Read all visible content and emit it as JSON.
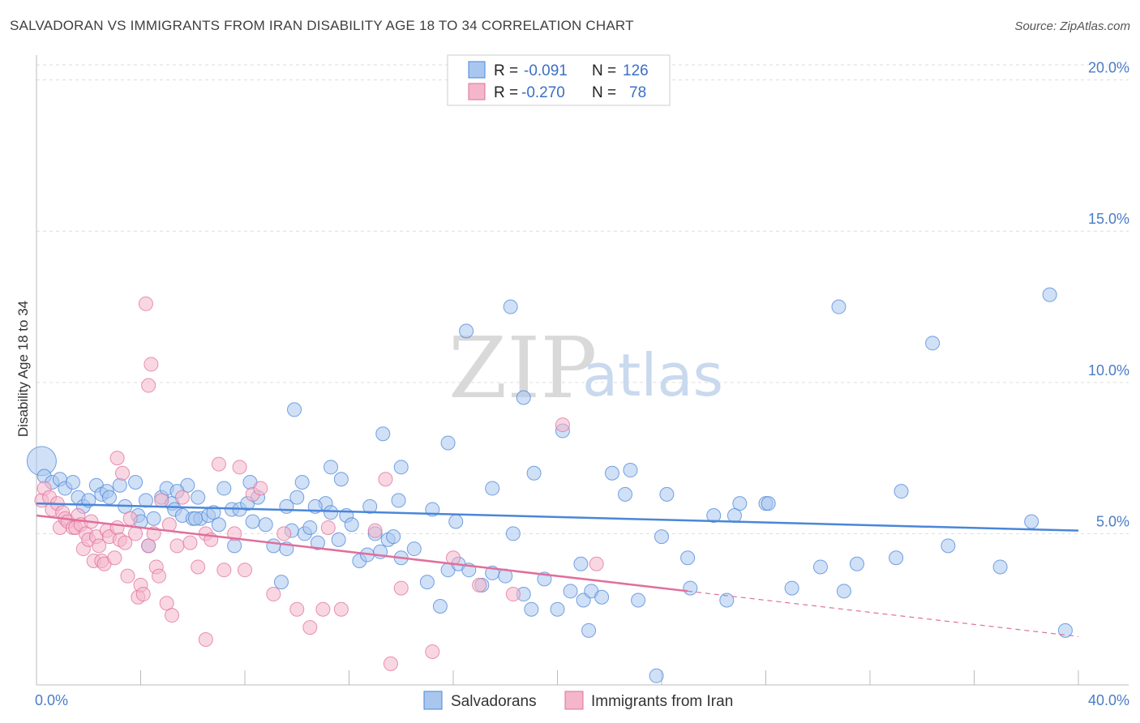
{
  "title": "SALVADORAN VS IMMIGRANTS FROM IRAN DISABILITY AGE 18 TO 34 CORRELATION CHART",
  "source": "Source: ZipAtlas.com",
  "watermark": {
    "zip": "ZIP",
    "atlas": "atlas"
  },
  "colors": {
    "blue": "#4a86d9",
    "blue_fill": "#a9c7ee",
    "pink": "#e06f9b",
    "pink_fill": "#f4b6cb",
    "axis_text": "#4a7cc9"
  },
  "chart_data": {
    "type": "scatter",
    "xlabel": "",
    "ylabel": "Disability Age 18 to 34",
    "xlim": [
      0,
      40
    ],
    "ylim": [
      0,
      20.5
    ],
    "x_tick_labels": [
      {
        "value": 0,
        "label": "0.0%"
      },
      {
        "value": 40,
        "label": "40.0%"
      }
    ],
    "y_tick_labels": [
      {
        "value": 5,
        "label": "5.0%"
      },
      {
        "value": 10,
        "label": "10.0%"
      },
      {
        "value": 15,
        "label": "15.0%"
      },
      {
        "value": 20,
        "label": "20.0%"
      }
    ],
    "legend": [
      {
        "label": "R =",
        "r": "-0.091",
        "n_label": "N =",
        "n": "126",
        "color": "blue"
      },
      {
        "label": "R =",
        "r": "-0.270",
        "n_label": "N =",
        "n": "78",
        "color": "pink"
      }
    ],
    "series": [
      {
        "name": "Salvadorans",
        "color": "blue",
        "trend": {
          "x0": 0,
          "y0": 6.0,
          "x1": 40,
          "y1": 5.1
        },
        "points": [
          [
            0.2,
            7.4
          ],
          [
            0.3,
            6.9
          ],
          [
            0.6,
            6.7
          ],
          [
            0.9,
            6.8
          ],
          [
            1.1,
            6.5
          ],
          [
            1.4,
            6.7
          ],
          [
            1.6,
            6.2
          ],
          [
            1.8,
            5.9
          ],
          [
            2.0,
            6.1
          ],
          [
            2.3,
            6.6
          ],
          [
            2.5,
            6.3
          ],
          [
            2.7,
            6.4
          ],
          [
            2.8,
            6.2
          ],
          [
            3.2,
            6.6
          ],
          [
            3.4,
            5.9
          ],
          [
            3.8,
            6.7
          ],
          [
            3.9,
            5.6
          ],
          [
            4.0,
            5.4
          ],
          [
            4.2,
            6.1
          ],
          [
            4.3,
            4.6
          ],
          [
            4.5,
            5.5
          ],
          [
            4.8,
            6.2
          ],
          [
            5.0,
            6.5
          ],
          [
            5.2,
            6.0
          ],
          [
            5.3,
            5.8
          ],
          [
            5.6,
            5.6
          ],
          [
            5.8,
            6.6
          ],
          [
            6.0,
            5.5
          ],
          [
            6.2,
            6.2
          ],
          [
            6.3,
            5.5
          ],
          [
            6.6,
            5.6
          ],
          [
            6.8,
            5.7
          ],
          [
            7.0,
            5.3
          ],
          [
            7.2,
            6.5
          ],
          [
            7.5,
            5.8
          ],
          [
            7.6,
            4.6
          ],
          [
            7.8,
            5.8
          ],
          [
            8.1,
            6.0
          ],
          [
            8.3,
            5.4
          ],
          [
            8.5,
            6.2
          ],
          [
            8.8,
            5.3
          ],
          [
            9.1,
            4.6
          ],
          [
            9.4,
            3.4
          ],
          [
            9.6,
            4.5
          ],
          [
            9.8,
            5.1
          ],
          [
            10.0,
            6.2
          ],
          [
            10.3,
            5.0
          ],
          [
            10.5,
            5.2
          ],
          [
            10.8,
            4.7
          ],
          [
            11.1,
            6.0
          ],
          [
            11.3,
            5.7
          ],
          [
            11.6,
            4.8
          ],
          [
            11.9,
            5.6
          ],
          [
            12.4,
            4.1
          ],
          [
            12.7,
            4.3
          ],
          [
            13.0,
            5.0
          ],
          [
            13.2,
            4.4
          ],
          [
            13.5,
            4.8
          ],
          [
            13.7,
            4.9
          ],
          [
            14.0,
            4.2
          ],
          [
            14.5,
            4.5
          ],
          [
            15.0,
            3.4
          ],
          [
            15.5,
            2.6
          ],
          [
            15.8,
            3.8
          ],
          [
            16.2,
            4.0
          ],
          [
            16.6,
            3.8
          ],
          [
            17.1,
            3.3
          ],
          [
            17.5,
            3.7
          ],
          [
            18.0,
            3.6
          ],
          [
            18.3,
            5.0
          ],
          [
            18.7,
            3.0
          ],
          [
            19.0,
            2.5
          ],
          [
            19.5,
            3.5
          ],
          [
            20.0,
            2.5
          ],
          [
            20.5,
            3.1
          ],
          [
            21.0,
            2.8
          ],
          [
            21.3,
            3.1
          ],
          [
            21.7,
            2.9
          ],
          [
            22.1,
            7.0
          ],
          [
            22.8,
            7.1
          ],
          [
            24.0,
            4.9
          ],
          [
            25.0,
            4.2
          ],
          [
            26.0,
            5.6
          ],
          [
            26.5,
            2.8
          ],
          [
            27.0,
            6.0
          ],
          [
            28.0,
            6.0
          ],
          [
            29.0,
            3.2
          ],
          [
            31.0,
            3.1
          ],
          [
            31.5,
            4.0
          ],
          [
            33.0,
            4.2
          ],
          [
            35.0,
            4.6
          ],
          [
            37.0,
            3.9
          ],
          [
            38.2,
            5.4
          ],
          [
            39.5,
            1.8
          ],
          [
            9.9,
            9.1
          ],
          [
            11.3,
            7.2
          ],
          [
            10.2,
            6.7
          ],
          [
            13.3,
            8.3
          ],
          [
            14.0,
            7.2
          ],
          [
            15.8,
            8.0
          ],
          [
            16.5,
            11.7
          ],
          [
            17.5,
            6.5
          ],
          [
            18.2,
            12.5
          ],
          [
            18.7,
            9.5
          ],
          [
            19.1,
            7.0
          ],
          [
            20.2,
            8.4
          ],
          [
            20.9,
            4.0
          ],
          [
            21.2,
            1.8
          ],
          [
            22.6,
            6.3
          ],
          [
            23.1,
            2.8
          ],
          [
            23.8,
            0.3
          ],
          [
            24.2,
            6.3
          ],
          [
            25.1,
            3.2
          ],
          [
            26.8,
            5.6
          ],
          [
            28.1,
            6.0
          ],
          [
            30.1,
            3.9
          ],
          [
            30.8,
            12.5
          ],
          [
            33.2,
            6.4
          ],
          [
            34.4,
            11.3
          ],
          [
            38.9,
            12.9
          ],
          [
            12.8,
            5.9
          ],
          [
            12.1,
            5.3
          ],
          [
            13.9,
            6.1
          ],
          [
            15.2,
            5.8
          ],
          [
            16.1,
            5.4
          ],
          [
            11.7,
            6.8
          ],
          [
            10.7,
            5.9
          ],
          [
            9.6,
            5.9
          ],
          [
            8.2,
            6.7
          ],
          [
            6.1,
            5.5
          ],
          [
            5.4,
            6.4
          ]
        ]
      },
      {
        "name": "Immigrants from Iran",
        "color": "pink",
        "trend": {
          "x0": 0,
          "y0": 5.6,
          "x1": 25,
          "y1": 3.1
        },
        "trend_dashed": {
          "x0": 25,
          "y0": 3.1,
          "x1": 40,
          "y1": 1.6
        },
        "points": [
          [
            0.2,
            6.1
          ],
          [
            0.3,
            6.5
          ],
          [
            0.5,
            6.2
          ],
          [
            0.6,
            5.8
          ],
          [
            0.8,
            6.0
          ],
          [
            0.9,
            5.2
          ],
          [
            1.0,
            5.7
          ],
          [
            1.1,
            5.5
          ],
          [
            1.2,
            5.4
          ],
          [
            1.4,
            5.2
          ],
          [
            1.5,
            5.2
          ],
          [
            1.6,
            5.6
          ],
          [
            1.7,
            5.3
          ],
          [
            1.8,
            4.5
          ],
          [
            1.9,
            5.0
          ],
          [
            2.0,
            4.8
          ],
          [
            2.1,
            5.4
          ],
          [
            2.2,
            4.1
          ],
          [
            2.3,
            4.9
          ],
          [
            2.4,
            4.6
          ],
          [
            2.5,
            4.1
          ],
          [
            2.6,
            4.0
          ],
          [
            2.7,
            5.1
          ],
          [
            2.8,
            4.9
          ],
          [
            3.0,
            4.2
          ],
          [
            3.1,
            5.2
          ],
          [
            3.2,
            4.8
          ],
          [
            3.4,
            4.7
          ],
          [
            3.5,
            3.6
          ],
          [
            3.6,
            5.5
          ],
          [
            3.8,
            5.0
          ],
          [
            3.9,
            2.9
          ],
          [
            4.0,
            3.3
          ],
          [
            4.1,
            3.0
          ],
          [
            4.3,
            4.6
          ],
          [
            4.5,
            5.0
          ],
          [
            4.6,
            3.9
          ],
          [
            4.7,
            3.6
          ],
          [
            4.8,
            6.1
          ],
          [
            5.0,
            2.7
          ],
          [
            5.1,
            5.3
          ],
          [
            5.2,
            2.3
          ],
          [
            5.4,
            4.6
          ],
          [
            5.6,
            6.2
          ],
          [
            5.9,
            4.7
          ],
          [
            6.2,
            3.9
          ],
          [
            6.5,
            5.0
          ],
          [
            6.7,
            4.8
          ],
          [
            7.0,
            7.3
          ],
          [
            7.2,
            3.8
          ],
          [
            7.6,
            5.0
          ],
          [
            7.8,
            7.2
          ],
          [
            8.0,
            3.8
          ],
          [
            8.3,
            6.3
          ],
          [
            8.6,
            6.5
          ],
          [
            9.1,
            3.0
          ],
          [
            9.5,
            5.0
          ],
          [
            10.0,
            2.5
          ],
          [
            10.5,
            1.9
          ],
          [
            11.0,
            2.5
          ],
          [
            11.2,
            5.2
          ],
          [
            11.7,
            2.5
          ],
          [
            13.0,
            5.1
          ],
          [
            14.0,
            3.2
          ],
          [
            15.2,
            1.1
          ],
          [
            16.0,
            4.2
          ],
          [
            17.0,
            3.3
          ],
          [
            18.3,
            3.0
          ],
          [
            20.2,
            8.6
          ],
          [
            21.5,
            4.0
          ],
          [
            4.2,
            12.6
          ],
          [
            4.4,
            10.6
          ],
          [
            4.3,
            9.9
          ],
          [
            3.1,
            7.5
          ],
          [
            3.3,
            7.0
          ],
          [
            13.4,
            6.8
          ],
          [
            13.6,
            0.7
          ],
          [
            6.5,
            1.5
          ]
        ]
      }
    ],
    "bottom_legend": [
      "Salvadorans",
      "Immigrants from Iran"
    ]
  }
}
